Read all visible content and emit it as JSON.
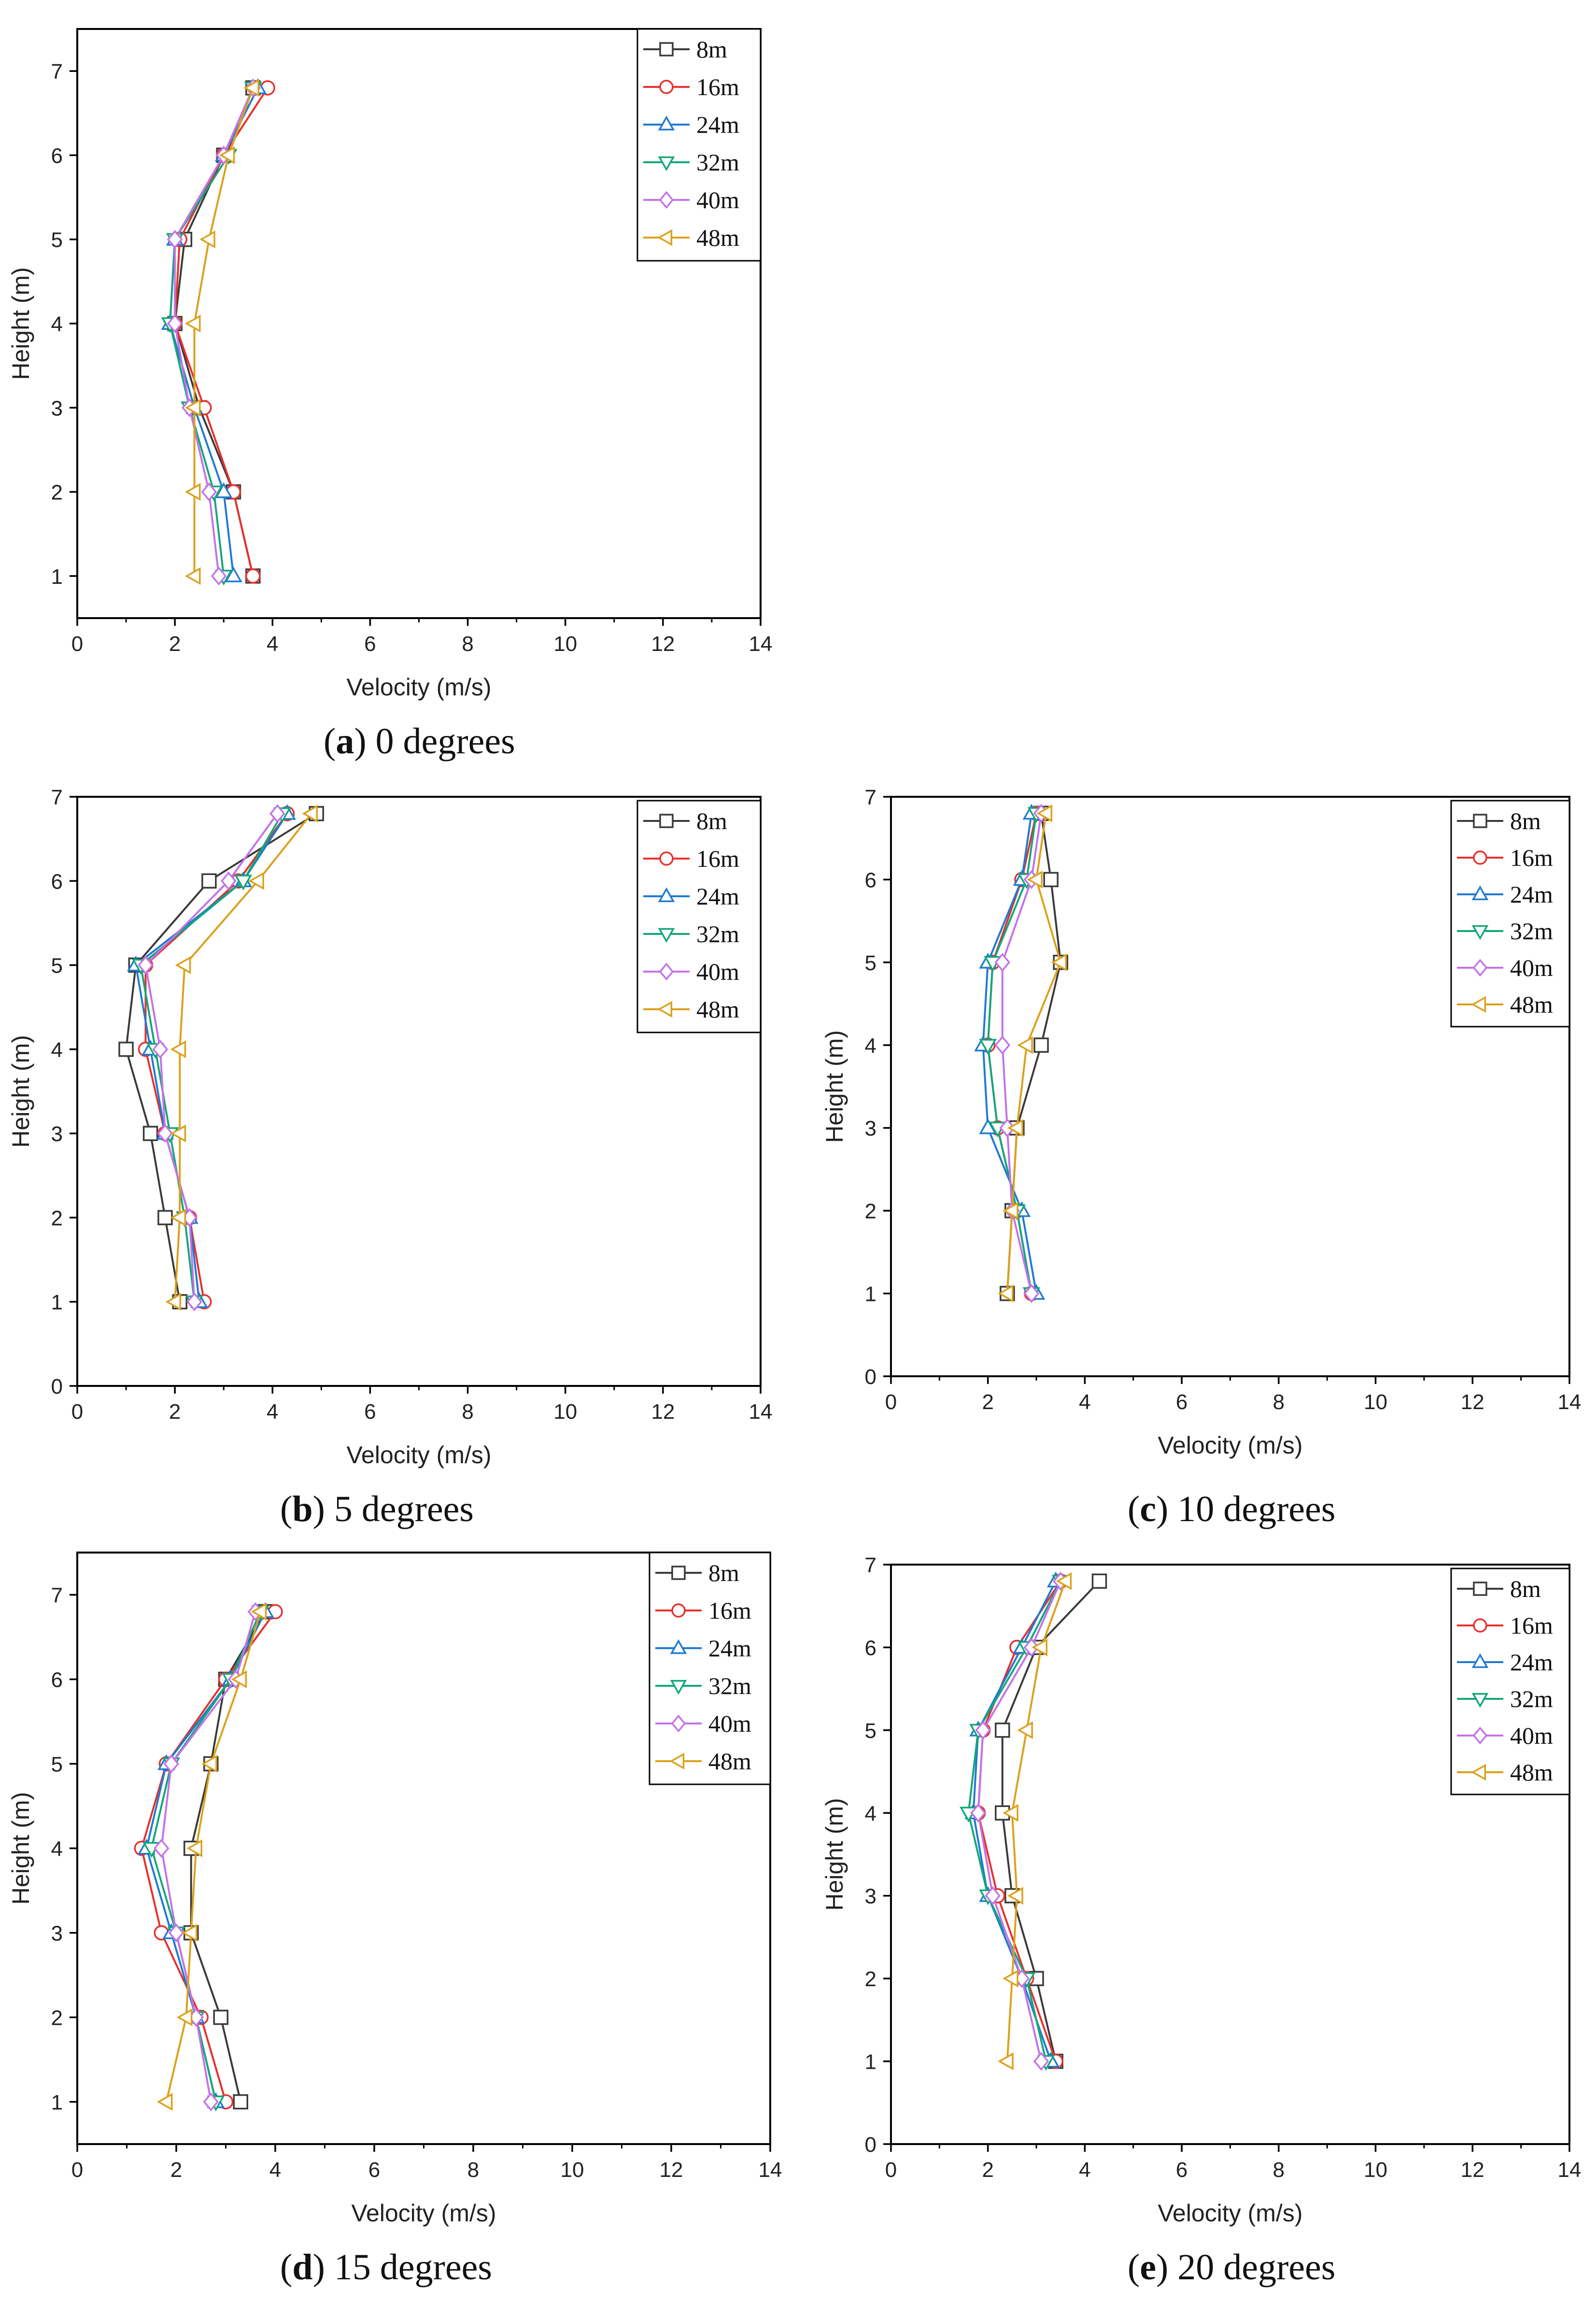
{
  "series_styles": [
    {
      "name": "8m",
      "color": "#3a3a3a",
      "marker": "square"
    },
    {
      "name": "16m",
      "color": "#e8302c",
      "marker": "circle"
    },
    {
      "name": "24m",
      "color": "#1f7ad2",
      "marker": "triangle-up"
    },
    {
      "name": "32m",
      "color": "#12a77a",
      "marker": "triangle-down"
    },
    {
      "name": "40m",
      "color": "#c472e8",
      "marker": "diamond"
    },
    {
      "name": "48m",
      "color": "#dba11b",
      "marker": "triangle-left"
    }
  ],
  "chart_data": [
    {
      "type": "line",
      "caption_letter": "a",
      "caption_text": "0 degrees",
      "xlabel": "Velocity (m/s)",
      "ylabel": "Height (m)",
      "xlim": [
        0,
        14
      ],
      "ylim": [
        0.5,
        7.5
      ],
      "xticks": [
        0,
        2,
        4,
        6,
        8,
        10,
        12,
        14
      ],
      "xtick_labels": [
        "0",
        "2",
        "4",
        "6",
        "8",
        "10",
        "12",
        "14"
      ],
      "yticks": [
        1,
        2,
        3,
        4,
        5,
        6,
        7
      ],
      "ytick_labels": [
        "1",
        "2",
        "3",
        "4",
        "5",
        "6",
        "7"
      ],
      "legend": "top-right",
      "y": [
        1,
        2,
        3,
        4,
        5,
        6,
        6.8
      ],
      "series": [
        {
          "name": "8m",
          "x": [
            3.6,
            3.2,
            2.5,
            2.0,
            2.2,
            3.0,
            3.6
          ]
        },
        {
          "name": "16m",
          "x": [
            3.6,
            3.2,
            2.6,
            2.0,
            2.1,
            3.0,
            3.9
          ]
        },
        {
          "name": "24m",
          "x": [
            3.2,
            3.0,
            2.4,
            1.9,
            2.0,
            3.0,
            3.7
          ]
        },
        {
          "name": "32m",
          "x": [
            3.0,
            2.8,
            2.3,
            1.9,
            2.0,
            3.1,
            3.6
          ]
        },
        {
          "name": "40m",
          "x": [
            2.9,
            2.7,
            2.3,
            2.0,
            2.0,
            3.0,
            3.6
          ]
        },
        {
          "name": "48m",
          "x": [
            2.4,
            2.4,
            2.4,
            2.4,
            2.7,
            3.1,
            3.6
          ]
        }
      ]
    },
    {
      "type": "line",
      "caption_letter": "b",
      "caption_text": "5 degrees",
      "xlabel": "Velocity (m/s)",
      "ylabel": "Height (m)",
      "xlim": [
        0,
        14
      ],
      "ylim": [
        0,
        7
      ],
      "xticks": [
        0,
        2,
        4,
        6,
        8,
        10,
        12,
        14
      ],
      "xtick_labels": [
        "0",
        "2",
        "4",
        "6",
        "8",
        "10",
        "12",
        "14"
      ],
      "yticks": [
        0,
        1,
        2,
        3,
        4,
        5,
        6,
        7
      ],
      "ytick_labels": [
        "0",
        "1",
        "2",
        "3",
        "4",
        "5",
        "6",
        "7"
      ],
      "legend": "top-right",
      "y": [
        1,
        2,
        3,
        4,
        5,
        6,
        6.8
      ],
      "series": [
        {
          "name": "8m",
          "x": [
            2.1,
            1.8,
            1.5,
            1.0,
            1.2,
            2.7,
            4.9
          ]
        },
        {
          "name": "16m",
          "x": [
            2.6,
            2.3,
            1.8,
            1.4,
            1.4,
            3.3,
            4.3
          ]
        },
        {
          "name": "24m",
          "x": [
            2.5,
            2.3,
            1.8,
            1.5,
            1.2,
            3.4,
            4.3
          ]
        },
        {
          "name": "32m",
          "x": [
            2.4,
            2.2,
            1.9,
            1.6,
            1.3,
            3.4,
            4.2
          ]
        },
        {
          "name": "40m",
          "x": [
            2.4,
            2.3,
            1.8,
            1.7,
            1.4,
            3.1,
            4.1
          ]
        },
        {
          "name": "48m",
          "x": [
            2.0,
            2.1,
            2.1,
            2.1,
            2.2,
            3.7,
            4.8
          ]
        }
      ]
    },
    {
      "type": "line",
      "caption_letter": "c",
      "caption_text": "10 degrees",
      "xlabel": "Velocity (m/s)",
      "ylabel": "Height (m)",
      "xlim": [
        0,
        14
      ],
      "ylim": [
        0,
        7
      ],
      "xticks": [
        0,
        2,
        4,
        6,
        8,
        10,
        12,
        14
      ],
      "xtick_labels": [
        "0",
        "2",
        "4",
        "6",
        "8",
        "10",
        "12",
        "14"
      ],
      "yticks": [
        0,
        1,
        2,
        3,
        4,
        5,
        6,
        7
      ],
      "ytick_labels": [
        "0",
        "1",
        "2",
        "3",
        "4",
        "5",
        "6",
        "7"
      ],
      "legend": "top-right",
      "y": [
        1,
        2,
        3,
        4,
        5,
        6,
        6.8
      ],
      "series": [
        {
          "name": "8m",
          "x": [
            2.4,
            2.5,
            2.6,
            3.1,
            3.5,
            3.3,
            3.1
          ]
        },
        {
          "name": "16m",
          "x": [
            2.9,
            2.6,
            2.2,
            2.0,
            2.1,
            2.7,
            3.0
          ]
        },
        {
          "name": "24m",
          "x": [
            3.0,
            2.7,
            2.0,
            1.9,
            2.0,
            2.7,
            2.9
          ]
        },
        {
          "name": "32m",
          "x": [
            2.9,
            2.6,
            2.2,
            2.0,
            2.1,
            2.8,
            3.0
          ]
        },
        {
          "name": "40m",
          "x": [
            2.9,
            2.5,
            2.4,
            2.3,
            2.3,
            2.9,
            3.1
          ]
        },
        {
          "name": "48m",
          "x": [
            2.4,
            2.5,
            2.6,
            2.8,
            3.5,
            3.0,
            3.2
          ]
        }
      ]
    },
    {
      "type": "line",
      "caption_letter": "d",
      "caption_text": "15 degrees",
      "xlabel": "Velocity (m/s)",
      "ylabel": "Height (m)",
      "xlim": [
        0,
        14
      ],
      "ylim": [
        0.5,
        7.5
      ],
      "xticks": [
        0,
        2,
        4,
        6,
        8,
        10,
        12,
        14
      ],
      "xtick_labels": [
        "0",
        "2",
        "4",
        "6",
        "8",
        "10",
        "12",
        "14"
      ],
      "yticks": [
        1,
        2,
        3,
        4,
        5,
        6,
        7
      ],
      "ytick_labels": [
        "1",
        "2",
        "3",
        "4",
        "5",
        "6",
        "7"
      ],
      "legend": "top-right",
      "y": [
        1,
        2,
        3,
        4,
        5,
        6,
        6.8
      ],
      "series": [
        {
          "name": "8m",
          "x": [
            3.3,
            2.9,
            2.3,
            2.3,
            2.7,
            3.0,
            3.8
          ]
        },
        {
          "name": "16m",
          "x": [
            3.0,
            2.5,
            1.7,
            1.3,
            1.8,
            3.0,
            4.0
          ]
        },
        {
          "name": "24m",
          "x": [
            2.8,
            2.4,
            1.9,
            1.4,
            1.8,
            3.1,
            3.8
          ]
        },
        {
          "name": "32m",
          "x": [
            2.8,
            2.4,
            2.0,
            1.5,
            1.9,
            3.1,
            3.7
          ]
        },
        {
          "name": "40m",
          "x": [
            2.7,
            2.4,
            2.0,
            1.7,
            1.9,
            3.2,
            3.6
          ]
        },
        {
          "name": "48m",
          "x": [
            1.8,
            2.2,
            2.3,
            2.4,
            2.7,
            3.3,
            3.7
          ]
        }
      ]
    },
    {
      "type": "line",
      "caption_letter": "e",
      "caption_text": "20 degrees",
      "xlabel": "Velocity (m/s)",
      "ylabel": "Height (m)",
      "xlim": [
        0,
        14
      ],
      "ylim": [
        0,
        7
      ],
      "xticks": [
        0,
        2,
        4,
        6,
        8,
        10,
        12,
        14
      ],
      "xtick_labels": [
        "0",
        "2",
        "4",
        "6",
        "8",
        "10",
        "12",
        "14"
      ],
      "yticks": [
        0,
        1,
        2,
        3,
        4,
        5,
        6,
        7
      ],
      "ytick_labels": [
        "0",
        "1",
        "2",
        "3",
        "4",
        "5",
        "6",
        "7"
      ],
      "legend": "top-right",
      "y": [
        1,
        2,
        3,
        4,
        5,
        6,
        6.8
      ],
      "series": [
        {
          "name": "8m",
          "x": [
            3.4,
            3.0,
            2.5,
            2.3,
            2.3,
            3.0,
            4.3
          ]
        },
        {
          "name": "16m",
          "x": [
            3.4,
            2.8,
            2.2,
            1.8,
            1.9,
            2.6,
            3.5
          ]
        },
        {
          "name": "24m",
          "x": [
            3.3,
            2.7,
            2.0,
            1.7,
            1.8,
            2.7,
            3.4
          ]
        },
        {
          "name": "32m",
          "x": [
            3.2,
            2.8,
            2.0,
            1.6,
            1.8,
            2.8,
            3.5
          ]
        },
        {
          "name": "40m",
          "x": [
            3.1,
            2.7,
            2.1,
            1.8,
            1.9,
            2.9,
            3.5
          ]
        },
        {
          "name": "48m",
          "x": [
            2.4,
            2.5,
            2.6,
            2.5,
            2.8,
            3.1,
            3.6
          ]
        }
      ]
    }
  ]
}
